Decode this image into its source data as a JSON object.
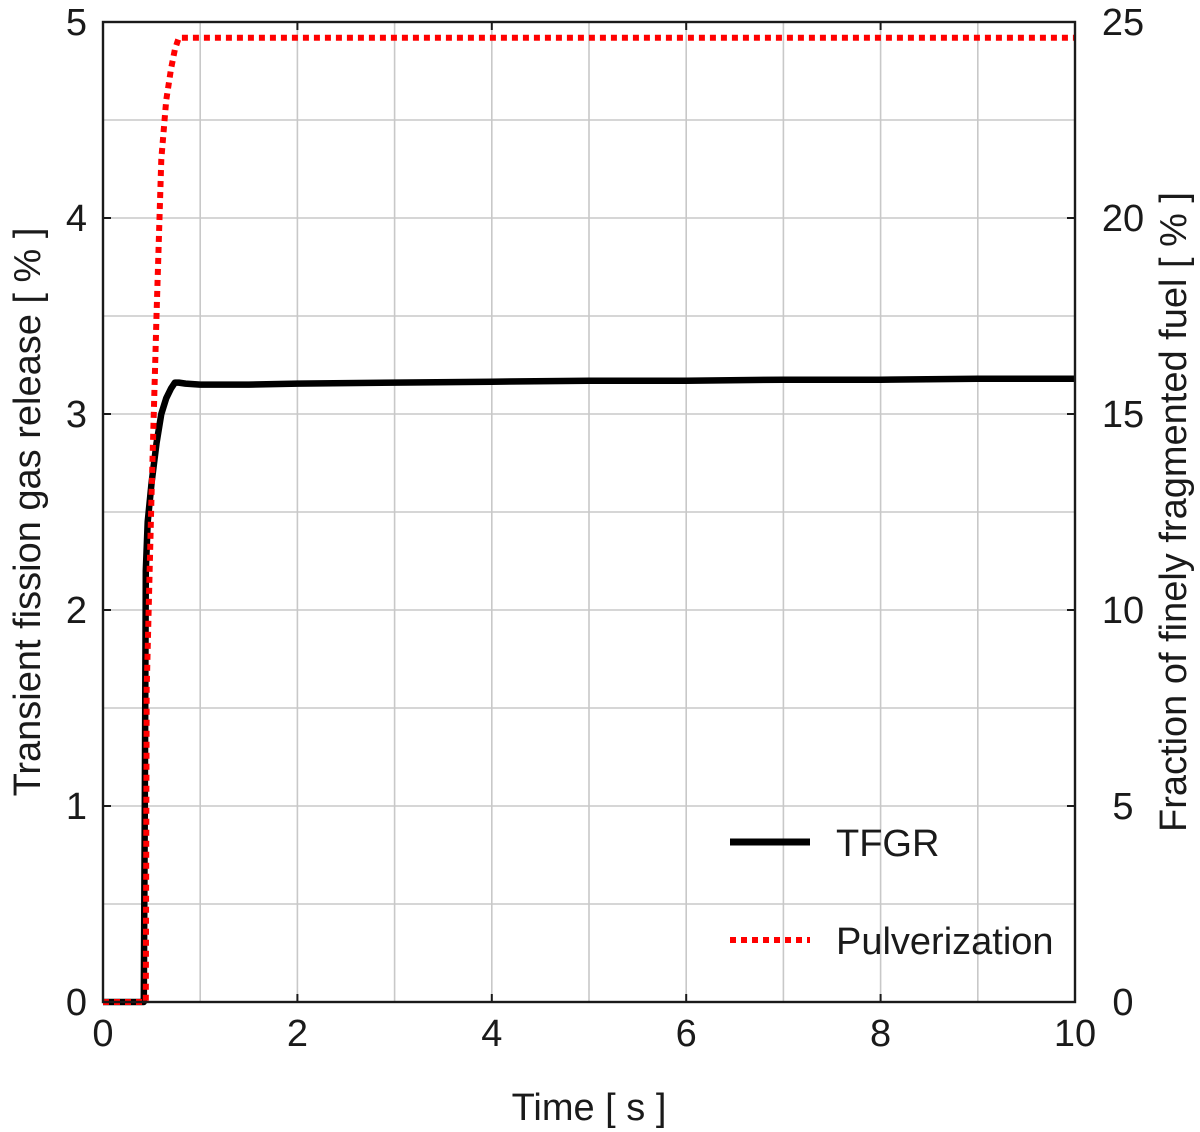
{
  "chart_data": {
    "type": "line",
    "xlabel": "Time [ s ]",
    "ylabel": "Transient fission gas release [ % ]",
    "y2label": "Fraction of finely fragmented fuel [ % ]",
    "xlim": [
      0,
      10
    ],
    "ylim": [
      0,
      5
    ],
    "y2lim": [
      0,
      25
    ],
    "xticks": [
      "0",
      "2",
      "4",
      "6",
      "8",
      "10"
    ],
    "yticks": [
      "0",
      "1",
      "2",
      "3",
      "4",
      "5"
    ],
    "y2ticks": [
      "0",
      "5",
      "10",
      "15",
      "20",
      "25"
    ],
    "grid": true,
    "legend_position": "bottom-right",
    "series": [
      {
        "name": "TFGR",
        "axis": "left",
        "color": "#000000",
        "style": "solid",
        "x": [
          0,
          0.42,
          0.43,
          0.44,
          0.46,
          0.5,
          0.55,
          0.6,
          0.65,
          0.7,
          0.74,
          0.78,
          0.85,
          1.0,
          1.5,
          2,
          3,
          4,
          5,
          6,
          7,
          8,
          9,
          10
        ],
        "y": [
          0,
          0,
          1.0,
          2.2,
          2.45,
          2.65,
          2.85,
          3.0,
          3.08,
          3.13,
          3.16,
          3.16,
          3.155,
          3.15,
          3.15,
          3.155,
          3.16,
          3.165,
          3.17,
          3.17,
          3.175,
          3.175,
          3.18,
          3.18
        ]
      },
      {
        "name": "Pulverization",
        "axis": "right",
        "color": "#ff0000",
        "style": "dotted",
        "x": [
          0,
          0.44,
          0.45,
          0.5,
          0.55,
          0.6,
          0.65,
          0.7,
          0.74,
          0.78,
          1,
          2,
          4,
          6,
          8,
          10
        ],
        "y": [
          0,
          0,
          8.0,
          13.0,
          17.5,
          21.5,
          23.0,
          23.8,
          24.3,
          24.6,
          24.6,
          24.6,
          24.6,
          24.6,
          24.6,
          24.6
        ]
      }
    ]
  }
}
